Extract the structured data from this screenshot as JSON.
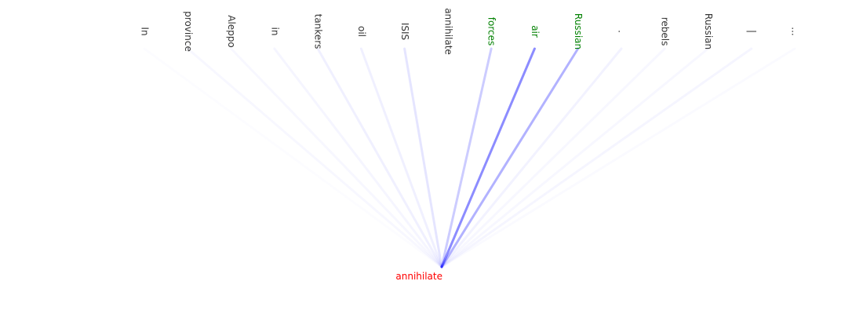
{
  "attention": {
    "line_color": "#0000ff",
    "query": {
      "text": "annihilate",
      "color": "#ff0000"
    },
    "tokens": [
      {
        "text": "In",
        "weight": 0.01,
        "color": "#333333"
      },
      {
        "text": "province",
        "weight": 0.03,
        "color": "#333333"
      },
      {
        "text": "Aleppo",
        "weight": 0.03,
        "color": "#333333"
      },
      {
        "text": "in",
        "weight": 0.04,
        "color": "#333333"
      },
      {
        "text": "tankers",
        "weight": 0.06,
        "color": "#333333"
      },
      {
        "text": "oil",
        "weight": 0.06,
        "color": "#333333"
      },
      {
        "text": "ISIS",
        "weight": 0.1,
        "color": "#333333"
      },
      {
        "text": "annihilate",
        "weight": 0.0,
        "color": "#333333"
      },
      {
        "text": "forces",
        "weight": 0.2,
        "color": "#008000"
      },
      {
        "text": "air",
        "weight": 0.45,
        "color": "#008000"
      },
      {
        "text": "Russian",
        "weight": 0.3,
        "color": "#008000"
      },
      {
        "text": ".",
        "weight": 0.05,
        "color": "#333333"
      },
      {
        "text": "rebels",
        "weight": 0.03,
        "color": "#333333"
      },
      {
        "text": "Russian",
        "weight": 0.03,
        "color": "#333333"
      },
      {
        "text": "|",
        "weight": 0.04,
        "color": "#333333"
      },
      {
        "text": "...",
        "weight": 0.02,
        "color": "#333333"
      }
    ]
  }
}
